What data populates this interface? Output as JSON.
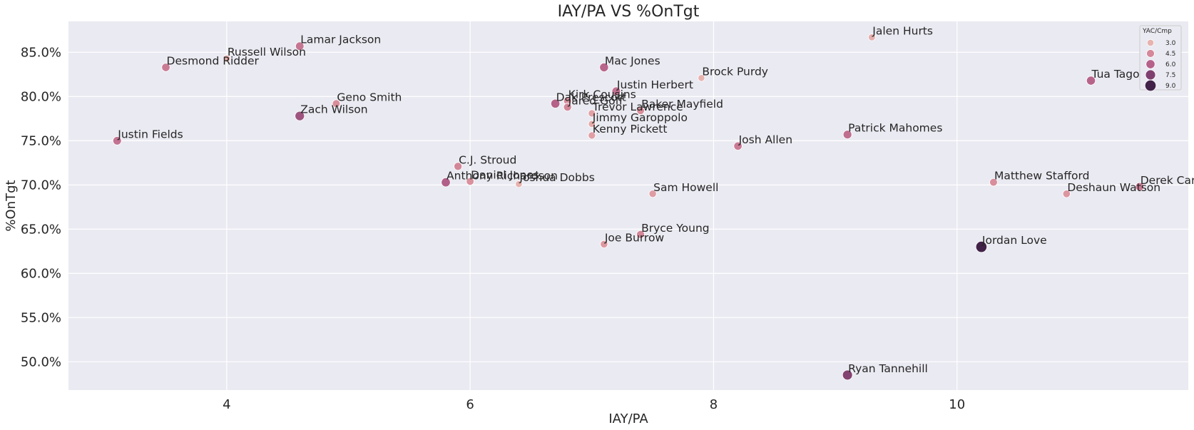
{
  "chart_data": {
    "type": "scatter",
    "title": "IAY/PA VS %OnTgt",
    "xlabel": "IAY/PA",
    "ylabel": "%OnTgt",
    "xlim": [
      2.7,
      11.9
    ],
    "ylim": [
      0.468,
      0.885
    ],
    "x_ticks": [
      4,
      6,
      8,
      10
    ],
    "y_ticks": [
      0.5,
      0.55,
      0.6,
      0.65,
      0.7,
      0.75,
      0.8,
      0.85
    ],
    "y_tick_labels": [
      "50.0%",
      "55.0%",
      "60.0%",
      "65.0%",
      "70.0%",
      "75.0%",
      "80.0%",
      "85.0%"
    ],
    "grid": true,
    "legend": {
      "title": "YAC/Cmp",
      "placement": "top-right",
      "entries": [
        "3.0",
        "4.5",
        "6.0",
        "7.5",
        "9.0"
      ],
      "values": [
        3.0,
        4.5,
        6.0,
        7.5,
        9.0
      ]
    },
    "hue_range": [
      2.5,
      9.5
    ],
    "points": [
      {
        "name": "Jalen Hurts",
        "x": 9.3,
        "y": 0.867,
        "hue": 3.2
      },
      {
        "name": "Lamar Jackson",
        "x": 4.6,
        "y": 0.857,
        "hue": 5.2
      },
      {
        "name": "Russell Wilson",
        "x": 4.0,
        "y": 0.843,
        "hue": 3.3
      },
      {
        "name": "Desmond Ridder",
        "x": 3.5,
        "y": 0.833,
        "hue": 5.0
      },
      {
        "name": "Mac Jones",
        "x": 7.1,
        "y": 0.833,
        "hue": 5.8
      },
      {
        "name": "Brock Purdy",
        "x": 7.9,
        "y": 0.821,
        "hue": 3.0
      },
      {
        "name": "Tua Tagovailoa",
        "x": 11.1,
        "y": 0.818,
        "hue": 5.9
      },
      {
        "name": "Justin Herbert",
        "x": 7.2,
        "y": 0.806,
        "hue": 5.4
      },
      {
        "name": "Kirk Cousins",
        "x": 6.8,
        "y": 0.795,
        "hue": 4.4
      },
      {
        "name": "Dak Prescott",
        "x": 6.7,
        "y": 0.792,
        "hue": 6.0
      },
      {
        "name": "Jared Goff",
        "x": 6.8,
        "y": 0.788,
        "hue": 4.6
      },
      {
        "name": "Geno Smith",
        "x": 4.9,
        "y": 0.792,
        "hue": 4.3
      },
      {
        "name": "Trevor Lawrence",
        "x": 7.0,
        "y": 0.781,
        "hue": 3.6
      },
      {
        "name": "Baker Mayfield",
        "x": 7.4,
        "y": 0.784,
        "hue": 4.3
      },
      {
        "name": "Zach Wilson",
        "x": 4.6,
        "y": 0.778,
        "hue": 6.6
      },
      {
        "name": "Jimmy Garoppolo",
        "x": 7.0,
        "y": 0.769,
        "hue": 3.3
      },
      {
        "name": "Patrick Mahomes",
        "x": 9.1,
        "y": 0.757,
        "hue": 5.5
      },
      {
        "name": "Kenny Pickett",
        "x": 7.0,
        "y": 0.756,
        "hue": 3.7
      },
      {
        "name": "Justin Fields",
        "x": 3.1,
        "y": 0.75,
        "hue": 5.3
      },
      {
        "name": "Josh Allen",
        "x": 8.2,
        "y": 0.744,
        "hue": 5.0
      },
      {
        "name": "C.J. Stroud",
        "x": 5.9,
        "y": 0.721,
        "hue": 4.6
      },
      {
        "name": "Anthony Richardson",
        "x": 5.8,
        "y": 0.703,
        "hue": 6.1
      },
      {
        "name": "Daniel Jones",
        "x": 6.0,
        "y": 0.704,
        "hue": 4.2
      },
      {
        "name": "Joshua Dobbs",
        "x": 6.4,
        "y": 0.701,
        "hue": 3.0
      },
      {
        "name": "Matthew Stafford",
        "x": 10.3,
        "y": 0.703,
        "hue": 4.3
      },
      {
        "name": "Derek Carr",
        "x": 11.5,
        "y": 0.698,
        "hue": 5.0
      },
      {
        "name": "Sam Howell",
        "x": 7.5,
        "y": 0.69,
        "hue": 3.8
      },
      {
        "name": "Deshaun Watson",
        "x": 10.9,
        "y": 0.69,
        "hue": 4.0
      },
      {
        "name": "Bryce Young",
        "x": 7.4,
        "y": 0.644,
        "hue": 4.6
      },
      {
        "name": "Joe Burrow",
        "x": 7.1,
        "y": 0.633,
        "hue": 3.9
      },
      {
        "name": "Jordan Love",
        "x": 10.2,
        "y": 0.63,
        "hue": 9.0
      },
      {
        "name": "Ryan Tannehill",
        "x": 9.1,
        "y": 0.485,
        "hue": 7.4
      }
    ]
  }
}
